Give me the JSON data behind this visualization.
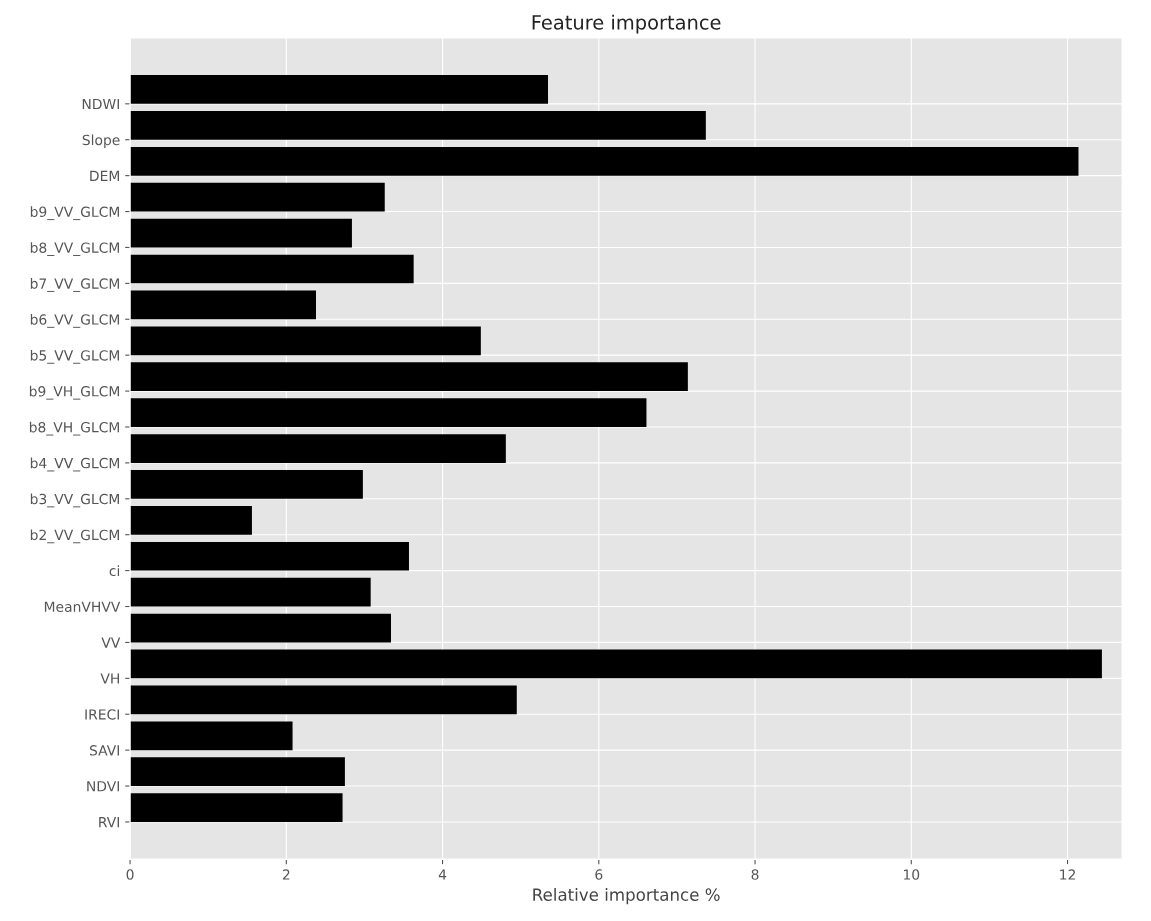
{
  "chart_data": {
    "type": "bar",
    "orientation": "horizontal",
    "title": "Feature importance",
    "xlabel": "Relative importance %",
    "categories": [
      "NDWI",
      "Slope",
      "DEM",
      "b9_VV_GLCM",
      "b8_VV_GLCM",
      "b7_VV_GLCM",
      "b6_VV_GLCM",
      "b5_VV_GLCM",
      "b9_VH_GLCM",
      "b8_VH_GLCM",
      "b4_VV_GLCM",
      "b3_VV_GLCM",
      "b2_VV_GLCM",
      "ci",
      "MeanVHVV",
      "VV",
      "VH",
      "IRECI",
      "SAVI",
      "NDVI",
      "RVI"
    ],
    "values": [
      5.35,
      7.37,
      12.14,
      3.26,
      2.84,
      3.63,
      2.38,
      4.49,
      7.14,
      6.61,
      4.81,
      2.98,
      1.56,
      3.57,
      3.08,
      3.34,
      12.44,
      4.95,
      2.08,
      2.75,
      2.72
    ],
    "color": "#000000",
    "xlim": [
      0,
      12.7
    ],
    "xticks": [
      0,
      2,
      4,
      6,
      8,
      10,
      12
    ],
    "grid": true
  }
}
